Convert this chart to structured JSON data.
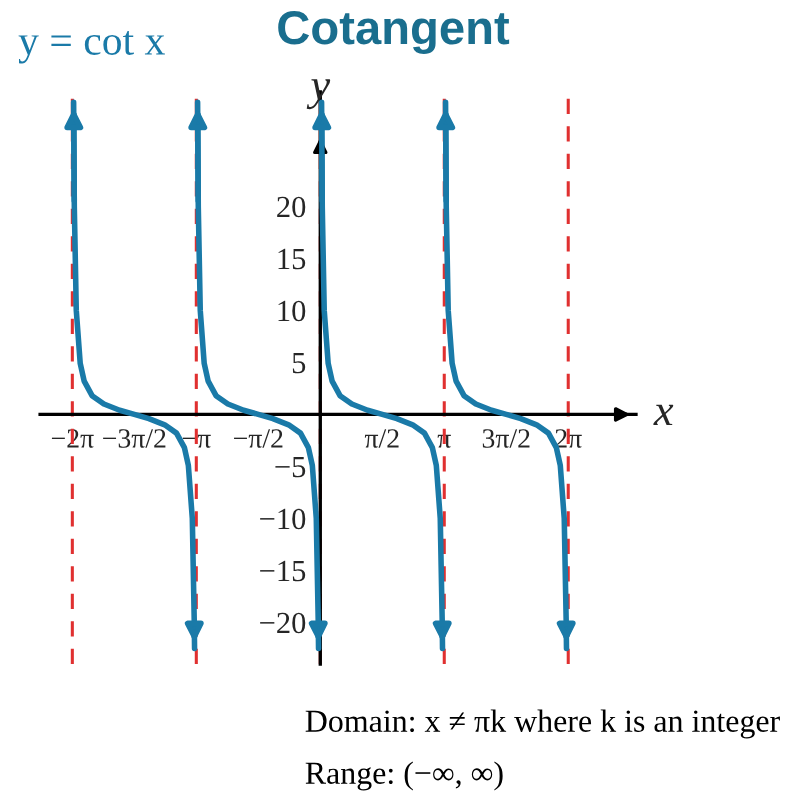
{
  "chart_data": {
    "type": "line",
    "title": "Cotangent",
    "xlabel": "x",
    "ylabel": "y",
    "xlim": [
      -7.1,
      8.0
    ],
    "ylim": [
      -24,
      31
    ],
    "xticks": [
      {
        "value": -6.2832,
        "label": "−2π"
      },
      {
        "value": -4.7124,
        "label": "−3π/2"
      },
      {
        "value": -3.1416,
        "label": "−π"
      },
      {
        "value": -1.5708,
        "label": "−π/2"
      },
      {
        "value": 1.5708,
        "label": "π/2"
      },
      {
        "value": 3.1416,
        "label": "π"
      },
      {
        "value": 4.7124,
        "label": "3π/2"
      },
      {
        "value": 6.2832,
        "label": "2π"
      }
    ],
    "yticks": [
      {
        "value": -20,
        "label": "−20"
      },
      {
        "value": -15,
        "label": "−15"
      },
      {
        "value": -10,
        "label": "−10"
      },
      {
        "value": -5,
        "label": "−5"
      },
      5,
      10,
      15,
      20
    ],
    "grid": false,
    "marker": "none",
    "line_style": "solid",
    "series": [
      {
        "name": "y = cot x",
        "color": "#1a7aa8",
        "x": [
          -6.2502,
          -6.2332,
          -6.1832,
          -6.0832,
          -5.9832,
          -5.7832,
          -5.4832,
          -5.0832,
          -4.7124,
          -4.3432,
          -3.9432,
          -3.6432,
          -3.4432,
          -3.3432,
          -3.2432,
          -3.1932,
          -3.186
        ],
        "values": [
          30,
          20,
          10,
          4.9,
          3.2,
          1.8,
          1,
          0.4,
          0,
          -0.4,
          -1,
          -1.8,
          -3.2,
          -4.9,
          -10,
          -20,
          -22.5
        ]
      },
      {
        "color": "#1a7aa8",
        "x": [
          -3.1086,
          -3.0916,
          -3.0416,
          -2.9416,
          -2.8416,
          -2.6416,
          -2.3416,
          -1.9416,
          -1.5708,
          -1.2016,
          -0.8016,
          -0.5016,
          -0.3016,
          -0.2016,
          -0.1016,
          -0.0516,
          -0.0444
        ],
        "values": [
          30,
          20,
          10,
          4.9,
          3.2,
          1.8,
          1,
          0.4,
          0,
          -0.4,
          -1,
          -1.8,
          -3.2,
          -4.9,
          -10,
          -20,
          -22.5
        ]
      },
      {
        "color": "#1a7aa8",
        "x": [
          0.033,
          0.05,
          0.1,
          0.2,
          0.3,
          0.5,
          0.8,
          1.2,
          1.5708,
          1.94,
          2.34,
          2.64,
          2.84,
          2.94,
          3.04,
          3.09,
          3.0972
        ],
        "values": [
          30,
          20,
          10,
          4.9,
          3.2,
          1.8,
          1,
          0.4,
          0,
          -0.4,
          -1,
          -1.8,
          -3.2,
          -4.9,
          -10,
          -20,
          -22.5
        ]
      },
      {
        "color": "#1a7aa8",
        "x": [
          3.1746,
          3.1916,
          3.2416,
          3.3416,
          3.4416,
          3.6416,
          3.9416,
          4.3416,
          4.7124,
          5.0816,
          5.4816,
          5.7816,
          5.9816,
          6.0816,
          6.1816,
          6.2316,
          6.2388
        ],
        "values": [
          30,
          20,
          10,
          4.9,
          3.2,
          1.8,
          1,
          0.4,
          0,
          -0.4,
          -1,
          -1.8,
          -3.2,
          -4.9,
          -10,
          -20,
          -22.5
        ]
      }
    ],
    "ref_lines": [
      {
        "axis": "x",
        "value": -6.2832,
        "color": "#e03030",
        "line_style": "dashed"
      },
      {
        "axis": "x",
        "value": -3.1416,
        "color": "#e03030",
        "line_style": "dashed"
      },
      {
        "axis": "x",
        "value": 0,
        "color": "#e03030",
        "line_style": "dashed"
      },
      {
        "axis": "x",
        "value": 3.1416,
        "color": "#e03030",
        "line_style": "dashed"
      },
      {
        "axis": "x",
        "value": 6.2832,
        "color": "#e03030",
        "line_style": "dashed"
      }
    ],
    "annotations": [
      "Domain: x ≠ πk where k is an integer",
      "Range: (−∞, ∞)"
    ]
  }
}
